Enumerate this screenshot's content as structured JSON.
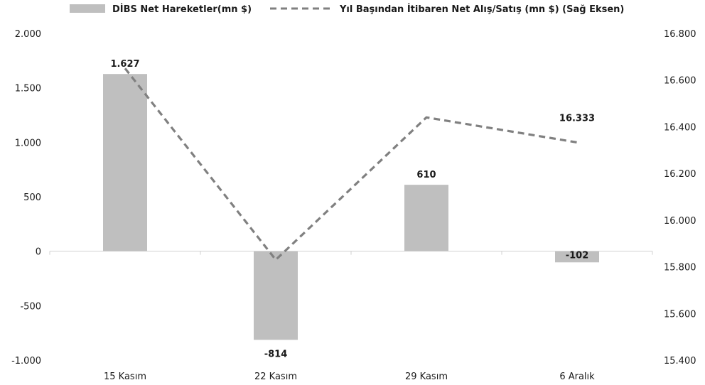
{
  "chart_data": {
    "type": "bar",
    "categories": [
      "15 Kasım",
      "22 Kasım",
      "29 Kasım",
      "6 Aralık"
    ],
    "series": [
      {
        "name": "DİBS Net Hareketler(mn $)",
        "type": "bar",
        "axis": "left",
        "values": [
          1627,
          -814,
          610,
          -102
        ],
        "labels": [
          "1.627",
          "-814",
          "610",
          "-102"
        ],
        "color": "#bfbfbf"
      },
      {
        "name": "Yıl Başından İtibaren Net Alış/Satış (mn $) (Sağ Eksen)",
        "type": "line",
        "axis": "right",
        "style": "dashed",
        "values": [
          16650,
          15830,
          16440,
          16333
        ],
        "labels": [
          "",
          "",
          "",
          "16.333"
        ],
        "color": "#808080"
      }
    ],
    "left_axis": {
      "ylim": [
        -1000,
        2000
      ],
      "ticks": [
        2000,
        1500,
        1000,
        500,
        0,
        -500,
        -1000
      ],
      "tick_labels": [
        "2.000",
        "1.500",
        "1.000",
        "500",
        "0",
        "-500",
        "-1.000"
      ]
    },
    "right_axis": {
      "ylim": [
        15400,
        16800
      ],
      "ticks": [
        16800,
        16600,
        16400,
        16200,
        16000,
        15800,
        15600,
        15400
      ],
      "tick_labels": [
        "16.800",
        "16.600",
        "16.400",
        "16.200",
        "16.000",
        "15.800",
        "15.600",
        "15.400"
      ]
    },
    "legend_position": "top",
    "grid": false
  }
}
